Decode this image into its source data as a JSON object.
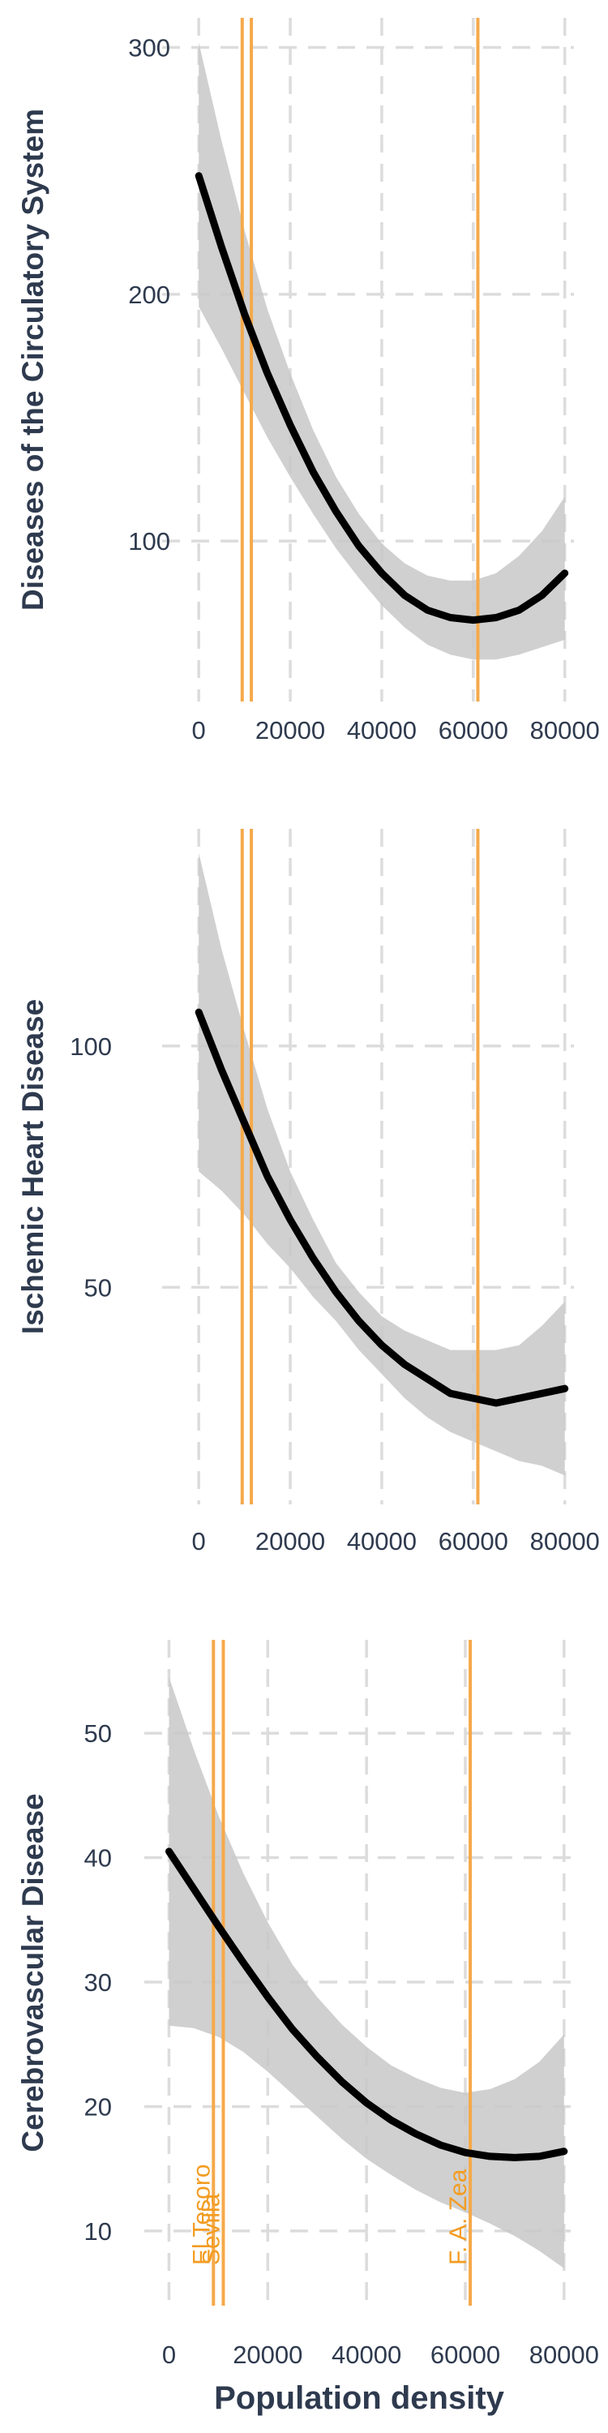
{
  "colors": {
    "background": "#ffffff",
    "grid": "#dcdcdc",
    "band": "#c8c8c8",
    "curve": "#000000",
    "vline": "#f5a94a",
    "vlabel": "#f39c22",
    "axis_text": "#2e3a4e"
  },
  "chart_data": [
    {
      "type": "line",
      "ylabel": "Diseases of the Circulatory System",
      "xlabel": "",
      "xlim": [
        -8000,
        82000
      ],
      "ylim": [
        35,
        312
      ],
      "x_ticks": [
        0,
        20000,
        40000,
        60000,
        80000
      ],
      "x_tick_labels": [
        "0",
        "20000",
        "40000",
        "60000",
        "80000"
      ],
      "y_ticks": [
        100,
        200,
        300
      ],
      "y_tick_labels": [
        "100",
        "200",
        "300"
      ],
      "grid": true,
      "series": [
        {
          "x": [
            0,
            5000,
            10000,
            15000,
            20000,
            25000,
            30000,
            35000,
            40000,
            45000,
            50000,
            55000,
            60000,
            65000,
            70000,
            75000,
            80000
          ],
          "y": [
            248,
            219,
            192,
            168,
            147,
            128,
            112,
            98,
            87,
            78,
            72,
            69,
            68,
            69,
            72,
            78,
            87
          ],
          "lower": [
            195,
            178,
            160,
            142,
            126,
            111,
            97,
            85,
            74,
            65,
            58,
            54,
            52,
            52,
            54,
            57,
            60
          ],
          "upper": [
            302,
            262,
            226,
            194,
            168,
            145,
            126,
            111,
            99,
            91,
            86,
            84,
            84,
            87,
            94,
            104,
            118
          ]
        }
      ],
      "vlines": [
        {
          "x": 9500,
          "label": ""
        },
        {
          "x": 11500,
          "label": ""
        },
        {
          "x": 61000,
          "label": ""
        }
      ]
    },
    {
      "type": "line",
      "ylabel": "Ischemic Heart Disease",
      "xlabel": "",
      "xlim": [
        -8000,
        82000
      ],
      "ylim": [
        5,
        145
      ],
      "x_ticks": [
        0,
        20000,
        40000,
        60000,
        80000
      ],
      "x_tick_labels": [
        "0",
        "20000",
        "40000",
        "60000",
        "80000"
      ],
      "y_ticks": [
        50,
        100
      ],
      "y_tick_labels": [
        "50",
        "100"
      ],
      "grid": true,
      "series": [
        {
          "x": [
            0,
            5000,
            10000,
            15000,
            20000,
            25000,
            30000,
            35000,
            40000,
            45000,
            50000,
            55000,
            60000,
            65000,
            70000,
            75000,
            80000
          ],
          "y": [
            107,
            95,
            84,
            73,
            64,
            56,
            49,
            43,
            38,
            34,
            31,
            28,
            27,
            26,
            27,
            28,
            29
          ],
          "lower": [
            74,
            70,
            65,
            59,
            54,
            48,
            43,
            37,
            32,
            27,
            23,
            20,
            18,
            16,
            14,
            13,
            11
          ],
          "upper": [
            140,
            120,
            103,
            87,
            74,
            64,
            55,
            49,
            44,
            41,
            39,
            37,
            37,
            37,
            38,
            42,
            47
          ]
        }
      ],
      "vlines": [
        {
          "x": 9500,
          "label": ""
        },
        {
          "x": 11500,
          "label": ""
        },
        {
          "x": 61000,
          "label": ""
        }
      ]
    },
    {
      "type": "line",
      "ylabel": "Cerebrovascular Disease",
      "xlabel": "Population density",
      "xlim": [
        -5000,
        82000
      ],
      "ylim": [
        4,
        57.5
      ],
      "x_ticks": [
        0,
        20000,
        40000,
        60000,
        80000
      ],
      "x_tick_labels": [
        "0",
        "20000",
        "40000",
        "60000",
        "80000"
      ],
      "y_ticks": [
        10,
        20,
        30,
        40,
        50
      ],
      "y_tick_labels": [
        "10",
        "20",
        "30",
        "40",
        "50"
      ],
      "grid": true,
      "series": [
        {
          "x": [
            0,
            5000,
            10000,
            15000,
            20000,
            25000,
            30000,
            35000,
            40000,
            45000,
            50000,
            55000,
            60000,
            65000,
            70000,
            75000,
            80000
          ],
          "y": [
            40.5,
            37.5,
            34.5,
            31.6,
            28.8,
            26.2,
            24.0,
            22.0,
            20.3,
            18.9,
            17.8,
            16.9,
            16.3,
            16.0,
            15.9,
            16.0,
            16.4
          ],
          "lower": [
            26.5,
            26.3,
            25.6,
            24.4,
            22.8,
            21.0,
            19.2,
            17.4,
            15.8,
            14.5,
            13.3,
            12.3,
            11.5,
            10.6,
            9.6,
            8.4,
            7.0
          ],
          "upper": [
            54.5,
            48.7,
            43.4,
            38.8,
            34.8,
            31.4,
            28.8,
            26.6,
            24.8,
            23.3,
            22.3,
            21.5,
            21.1,
            21.4,
            22.2,
            23.6,
            25.8
          ]
        }
      ],
      "vlines": [
        {
          "x": 9000,
          "label": "El Tesoro"
        },
        {
          "x": 11000,
          "label": "Sevilla"
        },
        {
          "x": 61000,
          "label": "F. A. Zea"
        }
      ]
    }
  ]
}
